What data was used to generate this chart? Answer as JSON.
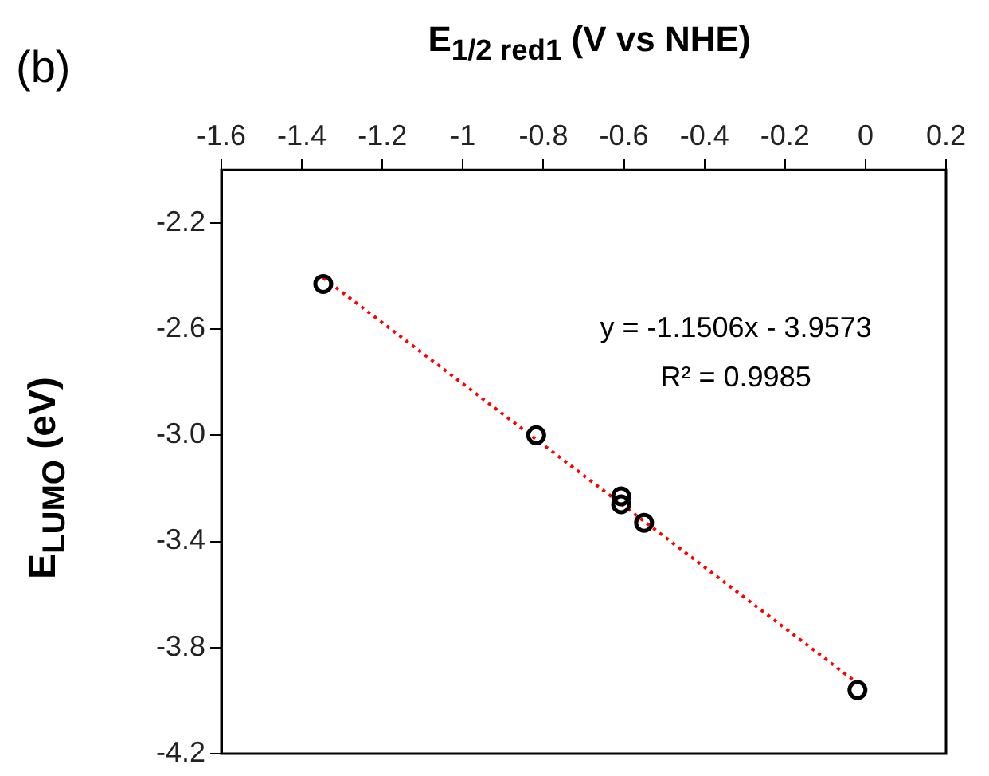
{
  "chart_data": {
    "type": "scatter",
    "xlabel": "E$_{1/2 red1}$ (V vs NHE)",
    "ylabel": "E$_{LUMO}$ (eV)",
    "xlim": [
      -1.6,
      0.2
    ],
    "xticks": [
      -1.6,
      -1.4,
      -1.2,
      -1,
      -0.8,
      -0.6,
      -0.4,
      -0.2,
      0,
      0.2
    ],
    "ylim": [
      -4.2,
      -2.0
    ],
    "yticks": [
      {
        "value": -2.2,
        "label": "-2.2"
      },
      {
        "value": -2.6,
        "label": "-2.6"
      },
      {
        "value": -3.0,
        "label": "-3.0"
      },
      {
        "value": -3.4,
        "label": "-3.4"
      },
      {
        "value": -3.8,
        "label": "-3.8"
      },
      {
        "value": -4.2,
        "label": "-4.2"
      }
    ],
    "series": [
      {
        "type": "scatter",
        "color": "#000000",
        "marker": "circle",
        "x": [
          -1.347,
          -0.818,
          -0.607,
          -0.607,
          -0.55,
          -0.02
        ],
        "values": [
          -2.43,
          -3.0,
          -3.23,
          -3.26,
          -3.33,
          -3.96
        ]
      },
      {
        "type": "line",
        "color": "#ff0000",
        "line_style": "dotted",
        "marker": "none",
        "x": [
          -1.347,
          -0.02
        ],
        "values": [
          -2.407,
          -3.934
        ]
      }
    ],
    "annotations": [
      "(b)",
      "y = -1.1506x - 3.9573",
      "R² = 0.9985"
    ],
    "grid": false,
    "legend": false
  }
}
